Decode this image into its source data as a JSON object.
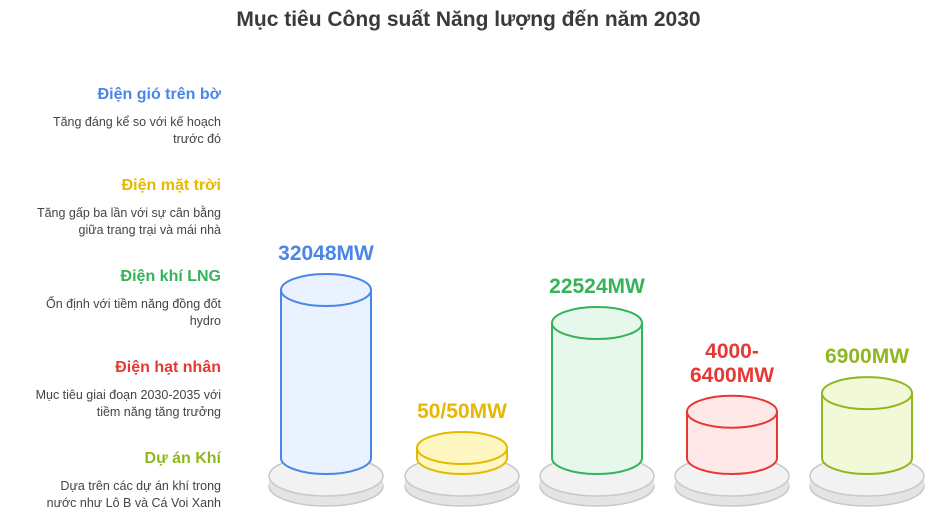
{
  "title": "Mục tiêu Công suất Năng lượng đến năm 2030",
  "legend": [
    {
      "name": "Điện gió trên bờ",
      "desc_lines": [
        "Tăng đáng kể so với kế hoạch",
        "trước đó"
      ],
      "color": "#4a86e8"
    },
    {
      "name": "Điện mặt trời",
      "desc_lines": [
        "Tăng gấp ba lần với sự cân bằng",
        "giữa trang trại và mái nhà"
      ],
      "color": "#e6b800"
    },
    {
      "name": "Điện khí LNG",
      "desc_lines": [
        "Ổn định với tiềm năng đồng đốt",
        "hydro"
      ],
      "color": "#34b35a"
    },
    {
      "name": "Điện hạt nhân",
      "desc_lines": [
        "Mục tiêu giai đoạn 2030-2035 với",
        "tiềm năng tăng trưởng"
      ],
      "color": "#e53935"
    },
    {
      "name": "Dự án Khí",
      "desc_lines": [
        "Dựa trên các dự án khí trong",
        "nước như Lô B và Cá Voi Xanh"
      ],
      "color": "#8fb820"
    }
  ],
  "chart_data": {
    "type": "bar",
    "title": "Mục tiêu Công suất Năng lượng đến năm 2030",
    "categories": [
      "Điện gió trên bờ",
      "Điện mặt trời",
      "Điện khí LNG",
      "Điện hạt nhân",
      "Dự án Khí"
    ],
    "values": [
      32048,
      50,
      22524,
      4000,
      6900
    ],
    "value_labels": [
      [
        "32048MW"
      ],
      [
        "50/50MW"
      ],
      [
        "22524MW"
      ],
      [
        "4000-",
        "6400MW"
      ],
      [
        "6900MW"
      ]
    ],
    "colors": [
      "#4a86e8",
      "#e6b800",
      "#34b35a",
      "#e53935",
      "#8fb820"
    ],
    "fills": [
      "#eaf1ff",
      "#fff7c2",
      "#e6f7ec",
      "#ffe8e8",
      "#f2f8d8"
    ],
    "style": "3d-cylinders"
  }
}
